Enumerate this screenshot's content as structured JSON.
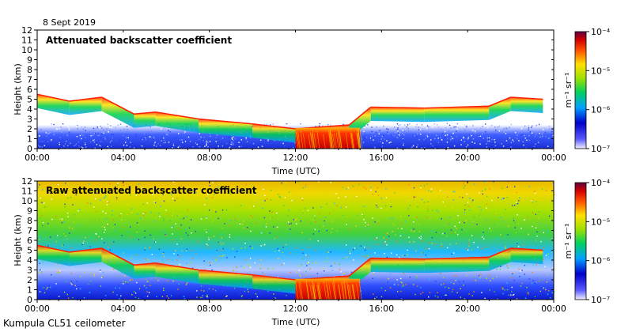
{
  "date_label": "8 Sept 2019",
  "footer_label": "Kumpula CL51 ceilometer",
  "colors": {
    "background_low": "#2e3bd9",
    "noise_speckle": "#4a63ff",
    "cloud_edge": "#ff2a00",
    "rain": "#d40000",
    "colorbar_top": "#7a0040"
  },
  "chart_data": [
    {
      "type": "heatmap",
      "title": "Attenuated backscatter coefficient",
      "xlabel": "Time (UTC)",
      "ylabel": "Height (km)",
      "x_ticks": [
        "00:00",
        "04:00",
        "08:00",
        "12:00",
        "16:00",
        "20:00",
        "00:00"
      ],
      "y_ticks": [
        "0",
        "1",
        "2",
        "3",
        "4",
        "5",
        "6",
        "7",
        "8",
        "9",
        "10",
        "11",
        "12"
      ],
      "xlim_hours": [
        0,
        24
      ],
      "ylim_km": [
        0,
        12
      ],
      "colorbar": {
        "scale": "log",
        "unit_label": "m⁻¹ sr⁻¹",
        "ticks": [
          "10⁻⁴",
          "10⁻⁵",
          "10⁻⁶",
          "10⁻⁷"
        ]
      },
      "cloud_layer_top_km": [
        {
          "t": 0.0,
          "h": 5.5
        },
        {
          "t": 1.5,
          "h": 4.8
        },
        {
          "t": 3.0,
          "h": 5.2
        },
        {
          "t": 4.5,
          "h": 3.5
        },
        {
          "t": 5.5,
          "h": 3.7
        },
        {
          "t": 7.5,
          "h": 3.0
        },
        {
          "t": 10.0,
          "h": 2.5
        },
        {
          "t": 12.0,
          "h": 2.0
        },
        {
          "t": 14.5,
          "h": 2.4
        },
        {
          "t": 15.5,
          "h": 4.2
        },
        {
          "t": 18.0,
          "h": 4.1
        },
        {
          "t": 21.0,
          "h": 4.3
        },
        {
          "t": 22.0,
          "h": 5.2
        },
        {
          "t": 23.5,
          "h": 5.0
        }
      ],
      "precipitation_hours": [
        12.0,
        15.0
      ]
    },
    {
      "type": "heatmap",
      "title": "Raw attenuated backscatter coefficient",
      "xlabel": "Time (UTC)",
      "ylabel": "Height (km)",
      "x_ticks": [
        "00:00",
        "04:00",
        "08:00",
        "12:00",
        "16:00",
        "20:00",
        "00:00"
      ],
      "y_ticks": [
        "0",
        "1",
        "2",
        "3",
        "4",
        "5",
        "6",
        "7",
        "8",
        "9",
        "10",
        "11",
        "12"
      ],
      "xlim_hours": [
        0,
        24
      ],
      "ylim_km": [
        0,
        12
      ],
      "colorbar": {
        "scale": "log",
        "unit_label": "m⁻¹ sr⁻¹",
        "ticks": [
          "10⁻⁴",
          "10⁻⁵",
          "10⁻⁶",
          "10⁻⁷"
        ]
      }
    }
  ]
}
